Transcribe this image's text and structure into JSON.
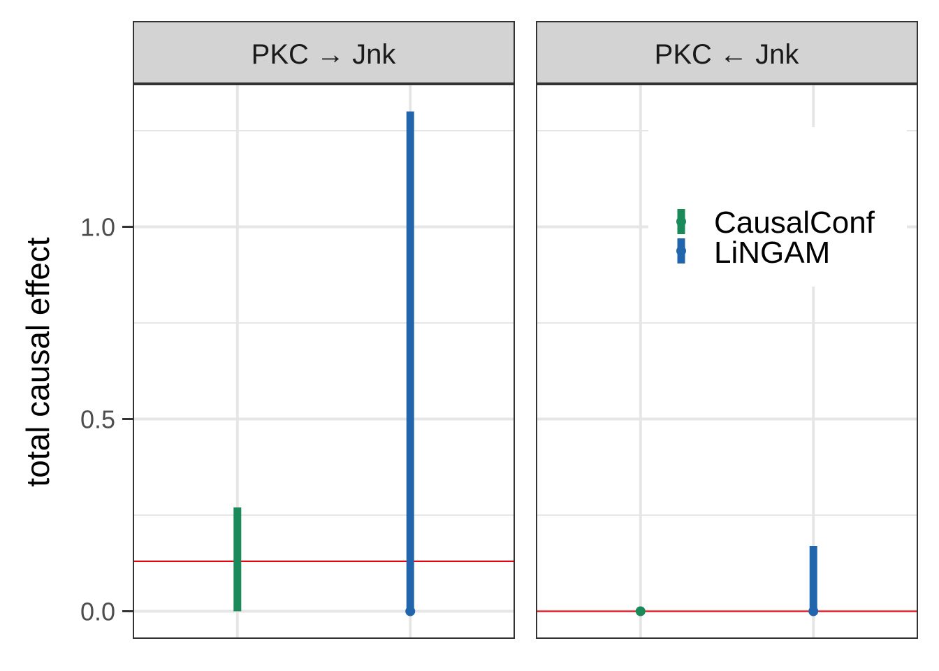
{
  "chart_data": {
    "type": "errorbar",
    "ylabel": "total causal effect",
    "xlabel": "",
    "ylim": [
      -0.07,
      1.37
    ],
    "y_ticks": [
      0.0,
      0.5,
      1.0
    ],
    "y_tick_labels": [
      "0.0",
      "0.5",
      "1.0"
    ],
    "grid": true,
    "legend_position": "top-right (inside right panel)",
    "colors": {
      "CausalConf": "#1b8a5a",
      "LiNGAM": "#2166ac",
      "reference_line": "#e8000b",
      "strip_background": "#d3d3d3",
      "grid": "#e6e6e6"
    },
    "legend": [
      {
        "name": "CausalConf",
        "color": "#1b8a5a"
      },
      {
        "name": "LiNGAM",
        "color": "#2166ac"
      }
    ],
    "panels": [
      {
        "title": "PKC → Jnk",
        "reference_value": 0.13,
        "series": [
          {
            "name": "CausalConf",
            "point": null,
            "lower": 0.0,
            "upper": 0.27
          },
          {
            "name": "LiNGAM",
            "point": 0.0,
            "lower": 0.0,
            "upper": 1.3
          }
        ]
      },
      {
        "title": "PKC ← Jnk",
        "reference_value": 0.0,
        "series": [
          {
            "name": "CausalConf",
            "point": 0.0,
            "lower": 0.0,
            "upper": 0.0
          },
          {
            "name": "LiNGAM",
            "point": 0.0,
            "lower": 0.0,
            "upper": 0.17
          }
        ]
      }
    ]
  }
}
